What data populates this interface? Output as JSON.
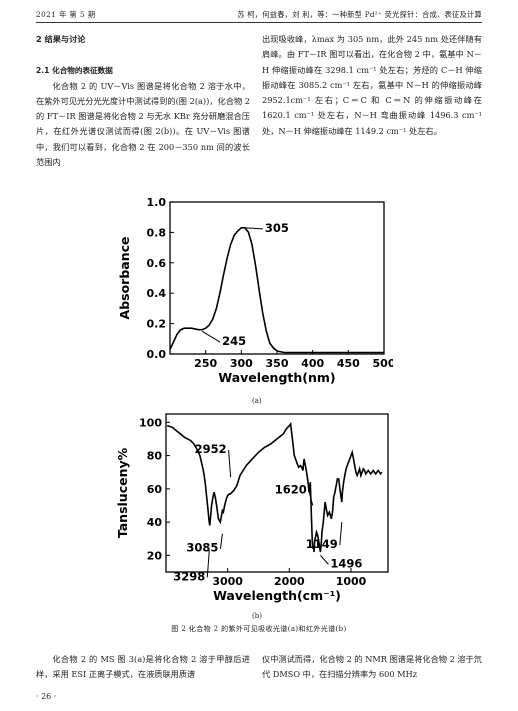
{
  "header": {
    "left": "2021 年 第 5 期",
    "right": "苏  柯，何益春，刘  利，等：一种新型 Pd²⁺ 荧光探针：合成、表征及计算"
  },
  "section": {
    "title": "2  结果与讨论",
    "subsection": "2.1  化合物的表征数据",
    "left_para": "化合物 2 的 UV－Vis 图谱是将化合物 2 溶于水中，在紫外可见光分光光度计中测试得到的(图 2(a))，化合物 2 的 FT－IR 图谱是将化合物 2 与无水 KBr 充分研磨混合压片，在红外光谱仪测试而得(图 2(b))。在 UV－Vis 图谱中，我们可以看到，化合物 2 在 200－350 nm 间的波长范围内",
    "right_para": "出现吸收峰，λmax 为 305 nm，此外 245 nm 处还伴随有肩峰。由 FT－IR 图可以看出，在化合物 2 中，氨基中 N－H 伸缩振动峰在 3298.1 cm⁻¹ 处左右；芳烃的 C－H 伸缩振动峰在 3085.2 cm⁻¹ 左右，氨基中 N－H 的伸缩振动峰 2952.1cm⁻¹ 左右；C＝C 和 C＝N 的伸缩振动峰在 1620.1 cm⁻¹ 处左右，N－H 弯曲振动峰 1496.3 cm⁻¹ 处，N－H 伸缩振动峰在 1149.2 cm⁻¹ 处左右。"
  },
  "figure": {
    "label_a": "(a)",
    "label_b": "(b)",
    "caption": "图 2  化合物 2 的紫外可见吸收光谱(a)和红外光谱(b)"
  },
  "bottom": {
    "left_para": "化合物 2 的 MS 图 3(a)是将化合物 2 溶于甲醇后进样，采用 ESI 正离子模式，在液质联用质谱",
    "right_para": "仪中测试而得，化合物 2 的 NMR 图谱是将化合物 2 溶于氘代 DMSO 中，在扫描分辨率为 600 MHz"
  },
  "page_number": "· 26 ·",
  "chart_data": [
    {
      "type": "line",
      "xlabel": "Wavelength(nm)",
      "ylabel": "Absorbance",
      "xlim": [
        200,
        500
      ],
      "ylim": [
        0.0,
        1.0
      ],
      "xticks": [
        250,
        300,
        350,
        400,
        450,
        500
      ],
      "yticks": [
        0.0,
        0.2,
        0.4,
        0.6,
        0.8,
        1.0
      ],
      "annotations": [
        {
          "text": "305",
          "x": 305,
          "y": 0.83
        },
        {
          "text": "245",
          "x": 245,
          "y": 0.15
        }
      ],
      "series": [
        {
          "x": [
            200,
            205,
            210,
            215,
            220,
            230,
            240,
            245,
            250,
            255,
            260,
            265,
            270,
            275,
            280,
            285,
            290,
            295,
            300,
            305,
            310,
            315,
            320,
            325,
            330,
            335,
            340,
            345,
            350,
            360,
            380,
            400,
            420,
            450,
            480,
            500
          ],
          "values": [
            0.03,
            0.08,
            0.13,
            0.16,
            0.17,
            0.17,
            0.16,
            0.16,
            0.17,
            0.19,
            0.23,
            0.3,
            0.4,
            0.52,
            0.63,
            0.72,
            0.78,
            0.81,
            0.83,
            0.83,
            0.8,
            0.72,
            0.58,
            0.42,
            0.27,
            0.15,
            0.07,
            0.04,
            0.02,
            0.01,
            0.01,
            0.01,
            0.01,
            0.01,
            0.01,
            0.01
          ]
        }
      ]
    },
    {
      "type": "line",
      "xlabel": "Wavelength(cm⁻¹)",
      "ylabel": "Tansluceny%",
      "xlim": [
        4000,
        400
      ],
      "ylim": [
        10,
        105
      ],
      "xticks": [
        3000,
        2000,
        1000
      ],
      "yticks": [
        20,
        40,
        60,
        80,
        100
      ],
      "annotations": [
        {
          "text": "2952",
          "x": 2952,
          "y": 67
        },
        {
          "text": "1620",
          "x": 1620,
          "y": 50
        },
        {
          "text": "3085",
          "x": 3085,
          "y": 33
        },
        {
          "text": "1149",
          "x": 1149,
          "y": 40
        },
        {
          "text": "3298",
          "x": 3298,
          "y": 23
        },
        {
          "text": "1496",
          "x": 1496,
          "y": 20
        }
      ],
      "series": [
        {
          "x": [
            3980,
            3900,
            3800,
            3700,
            3600,
            3550,
            3500,
            3450,
            3400,
            3380,
            3360,
            3340,
            3320,
            3300,
            3290,
            3280,
            3260,
            3240,
            3220,
            3200,
            3180,
            3150,
            3120,
            3100,
            3085,
            3070,
            3050,
            3020,
            3000,
            2970,
            2952,
            2930,
            2900,
            2850,
            2800,
            2700,
            2600,
            2500,
            2400,
            2300,
            2200,
            2100,
            2050,
            2000,
            1980,
            1950,
            1920,
            1900,
            1880,
            1850,
            1820,
            1800,
            1780,
            1760,
            1740,
            1720,
            1700,
            1680,
            1660,
            1640,
            1630,
            1620,
            1610,
            1600,
            1590,
            1580,
            1560,
            1540,
            1520,
            1505,
            1496,
            1485,
            1470,
            1450,
            1420,
            1400,
            1380,
            1350,
            1320,
            1300,
            1280,
            1260,
            1240,
            1220,
            1200,
            1180,
            1160,
            1149,
            1140,
            1120,
            1100,
            1080,
            1050,
            1020,
            1000,
            980,
            960,
            940,
            920,
            900,
            880,
            860,
            840,
            820,
            800,
            780,
            760,
            740,
            720,
            700,
            680,
            660,
            640,
            620,
            600,
            580,
            560,
            540,
            520,
            500
          ],
          "values": [
            98,
            97,
            94,
            91,
            89,
            87,
            84,
            80,
            72,
            68,
            62,
            55,
            48,
            40,
            38,
            42,
            50,
            55,
            58,
            55,
            50,
            42,
            40,
            44,
            47,
            46,
            50,
            54,
            56,
            57,
            57,
            58,
            59,
            62,
            68,
            74,
            78,
            82,
            85,
            87,
            90,
            93,
            96,
            98,
            99,
            90,
            80,
            78,
            76,
            73,
            74,
            73,
            71,
            78,
            74,
            70,
            65,
            58,
            64,
            42,
            30,
            24,
            26,
            22,
            28,
            30,
            34,
            32,
            28,
            24,
            22,
            26,
            34,
            40,
            52,
            48,
            44,
            46,
            42,
            46,
            55,
            58,
            62,
            66,
            66,
            60,
            55,
            52,
            58,
            64,
            68,
            72,
            75,
            78,
            80,
            82,
            78,
            74,
            70,
            68,
            70,
            72,
            68,
            70,
            72,
            71,
            69,
            70,
            71,
            70,
            69,
            70,
            71,
            70,
            69,
            70,
            71,
            70,
            69,
            70
          ]
        }
      ]
    }
  ]
}
